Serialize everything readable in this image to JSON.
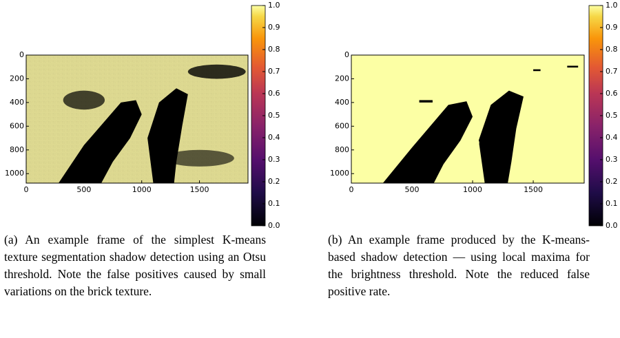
{
  "panels": [
    {
      "xlim": [
        0,
        1920
      ],
      "ylim": [
        0,
        1080
      ],
      "xticks": [
        0,
        500,
        1000,
        1500
      ],
      "yticks": [
        0,
        200,
        400,
        600,
        800,
        1000
      ],
      "colorbar_ticks": [
        {
          "value": 0,
          "label": "0.0"
        },
        {
          "value": 0.1,
          "label": "0.1"
        },
        {
          "value": 0.2,
          "label": "0.2"
        },
        {
          "value": 0.3,
          "label": "0.3"
        },
        {
          "value": 0.4,
          "label": "0.4"
        },
        {
          "value": 0.5,
          "label": "0.5"
        },
        {
          "value": 0.6,
          "label": "0.6"
        },
        {
          "value": 0.7,
          "label": "0.7"
        },
        {
          "value": 0.8,
          "label": "0.8"
        },
        {
          "value": 0.9,
          "label": "0.9"
        },
        {
          "value": 1,
          "label": "1.0"
        }
      ],
      "caption": "(a) An example frame of the simplest K-means texture segmentation shadow detection using an Otsu threshold. Note the false positives caused by small variations on the brick texture."
    },
    {
      "xlim": [
        0,
        1920
      ],
      "ylim": [
        0,
        1080
      ],
      "xticks": [
        0,
        500,
        1000,
        1500
      ],
      "yticks": [
        0,
        200,
        400,
        600,
        800,
        1000
      ],
      "colorbar_ticks": [
        {
          "value": 0,
          "label": "0.0"
        },
        {
          "value": 0.1,
          "label": "0.1"
        },
        {
          "value": 0.2,
          "label": "0.2"
        },
        {
          "value": 0.3,
          "label": "0.3"
        },
        {
          "value": 0.4,
          "label": "0.4"
        },
        {
          "value": 0.5,
          "label": "0.5"
        },
        {
          "value": 0.6,
          "label": "0.6"
        },
        {
          "value": 0.7,
          "label": "0.7"
        },
        {
          "value": 0.8,
          "label": "0.8"
        },
        {
          "value": 0.9,
          "label": "0.9"
        },
        {
          "value": 1,
          "label": "1.0"
        }
      ],
      "caption": "(b) An example frame produced by the K-means-based shadow detection — using local maxima for the brightness threshold. Note the reduced false positive rate."
    }
  ]
}
